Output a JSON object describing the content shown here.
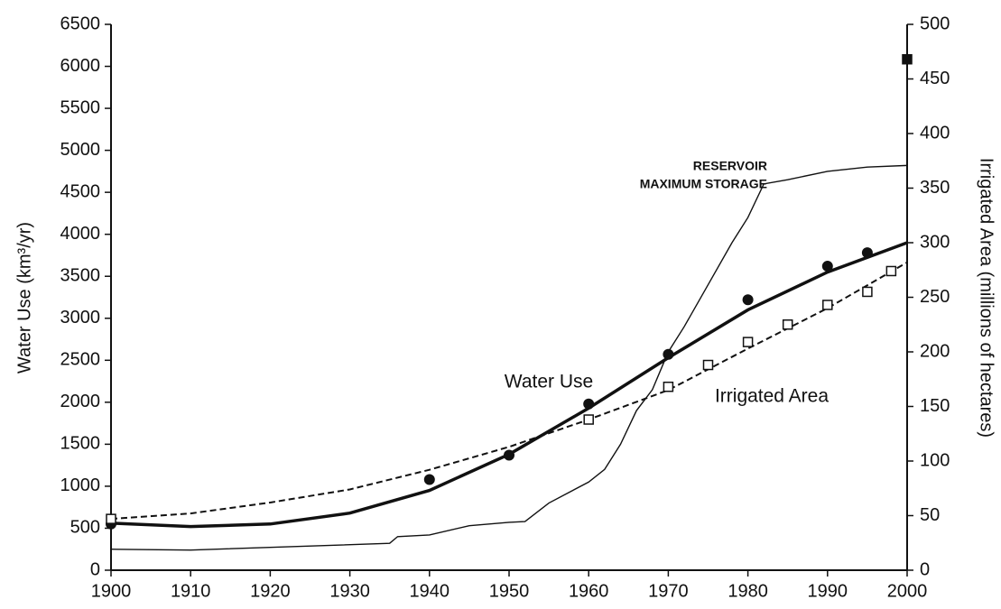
{
  "chart_data": {
    "type": "line",
    "y_label": "Water Use (km³/yr)",
    "y2_label": "Irrigated Area (millions of hectares)",
    "annotations": [
      "RESERVOIR",
      "MAXIMUM STORAGE"
    ],
    "xlim": [
      1900,
      2000
    ],
    "xticks": [
      1900,
      1910,
      1920,
      1930,
      1940,
      1950,
      1960,
      1970,
      1980,
      1990,
      2000
    ],
    "ylim": [
      0,
      6500
    ],
    "yticks": [
      0,
      500,
      1000,
      1500,
      2000,
      2500,
      3000,
      3500,
      4000,
      4500,
      5000,
      5500,
      6000,
      6500
    ],
    "y2lim": [
      0,
      500
    ],
    "y2ticks": [
      0,
      50,
      100,
      150,
      200,
      250,
      300,
      350,
      400,
      450,
      500
    ],
    "series": [
      {
        "name": "Water Use",
        "color": "#111111",
        "style": "thick",
        "x": [
          1900,
          1910,
          1920,
          1930,
          1940,
          1950,
          1960,
          1970,
          1980,
          1990,
          2000
        ],
        "values": [
          560,
          520,
          550,
          680,
          950,
          1380,
          1930,
          2530,
          3100,
          3550,
          3900
        ]
      },
      {
        "color": "#111111",
        "style": "dots",
        "x": [
          1900,
          1940,
          1950,
          1960,
          1970,
          1980,
          1990,
          1995
        ],
        "values": [
          550,
          1080,
          1370,
          1980,
          2570,
          3220,
          3620,
          3780
        ]
      },
      {
        "name": "Irrigated Area",
        "color": "#111111",
        "style": "dashed",
        "axis": "y2",
        "x": [
          1900,
          1910,
          1920,
          1930,
          1940,
          1950,
          1960,
          1970,
          1980,
          1990,
          2000
        ],
        "values": [
          47,
          52,
          62,
          74,
          92,
          113,
          138,
          165,
          203,
          240,
          282
        ]
      },
      {
        "color": "#111111",
        "style": "squares",
        "axis": "y2",
        "x": [
          1900,
          1960,
          1970,
          1975,
          1980,
          1985,
          1990,
          1995,
          1998
        ],
        "values": [
          47,
          138,
          168,
          188,
          209,
          225,
          243,
          255,
          274
        ]
      },
      {
        "color": "#111111",
        "style": "thin",
        "x": [
          1900,
          1910,
          1935,
          1936,
          1940,
          1945,
          1950,
          1952,
          1955,
          1960,
          1962,
          1964,
          1966,
          1968,
          1970,
          1972,
          1975,
          1978,
          1980,
          1982,
          1985,
          1990,
          1995,
          2000
        ],
        "values": [
          250,
          240,
          320,
          400,
          420,
          530,
          570,
          580,
          800,
          1050,
          1200,
          1500,
          1900,
          2150,
          2600,
          2900,
          3400,
          3900,
          4200,
          4600,
          4650,
          4750,
          4800,
          4820
        ]
      },
      {
        "color": "#111111",
        "style": "filled-squares",
        "axis": "y2",
        "x": [
          2000
        ],
        "values": [
          468
        ]
      }
    ]
  }
}
